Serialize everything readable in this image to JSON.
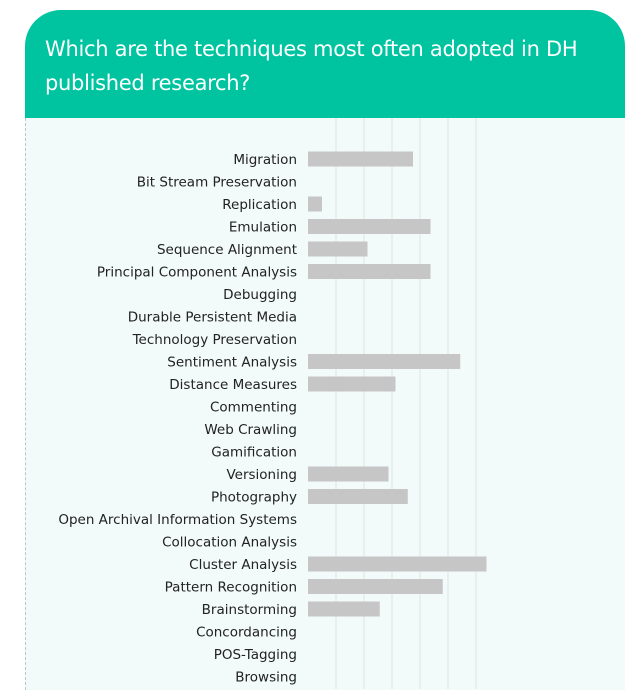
{
  "title": "Which are the techniques most often adopted in DH published research?",
  "colors": {
    "header": "#00c4a0",
    "panel": "#f2fbf9",
    "bar": "#c6c6c6",
    "grid": "#d9e4e1"
  },
  "chart_data": {
    "type": "bar",
    "orientation": "horizontal",
    "title": "Which are the techniques most often adopted in DH published research?",
    "xlabel": "",
    "ylabel": "",
    "xlim": [
      0,
      11
    ],
    "grid": true,
    "categories": [
      "Migration",
      "Bit Stream Preservation",
      "Replication",
      "Emulation",
      "Sequence Alignment",
      "Principal Component Analysis",
      "Debugging",
      "Durable Persistent Media",
      "Technology Preservation",
      "Sentiment Analysis",
      "Distance Measures",
      "Commenting",
      "Web Crawling",
      "Gamification",
      "Versioning",
      "Photography",
      "Open Archival Information Systems",
      "Collocation Analysis",
      "Cluster Analysis",
      "Pattern Recognition",
      "Brainstorming",
      "Concordancing",
      "POS-Tagging",
      "Browsing"
    ],
    "values": [
      6,
      0,
      0.8,
      7,
      3.4,
      7,
      0,
      0,
      0,
      8.7,
      5,
      0,
      0,
      0,
      4.6,
      5.7,
      0,
      0,
      10.2,
      7.7,
      4.1,
      0,
      0,
      0
    ]
  }
}
